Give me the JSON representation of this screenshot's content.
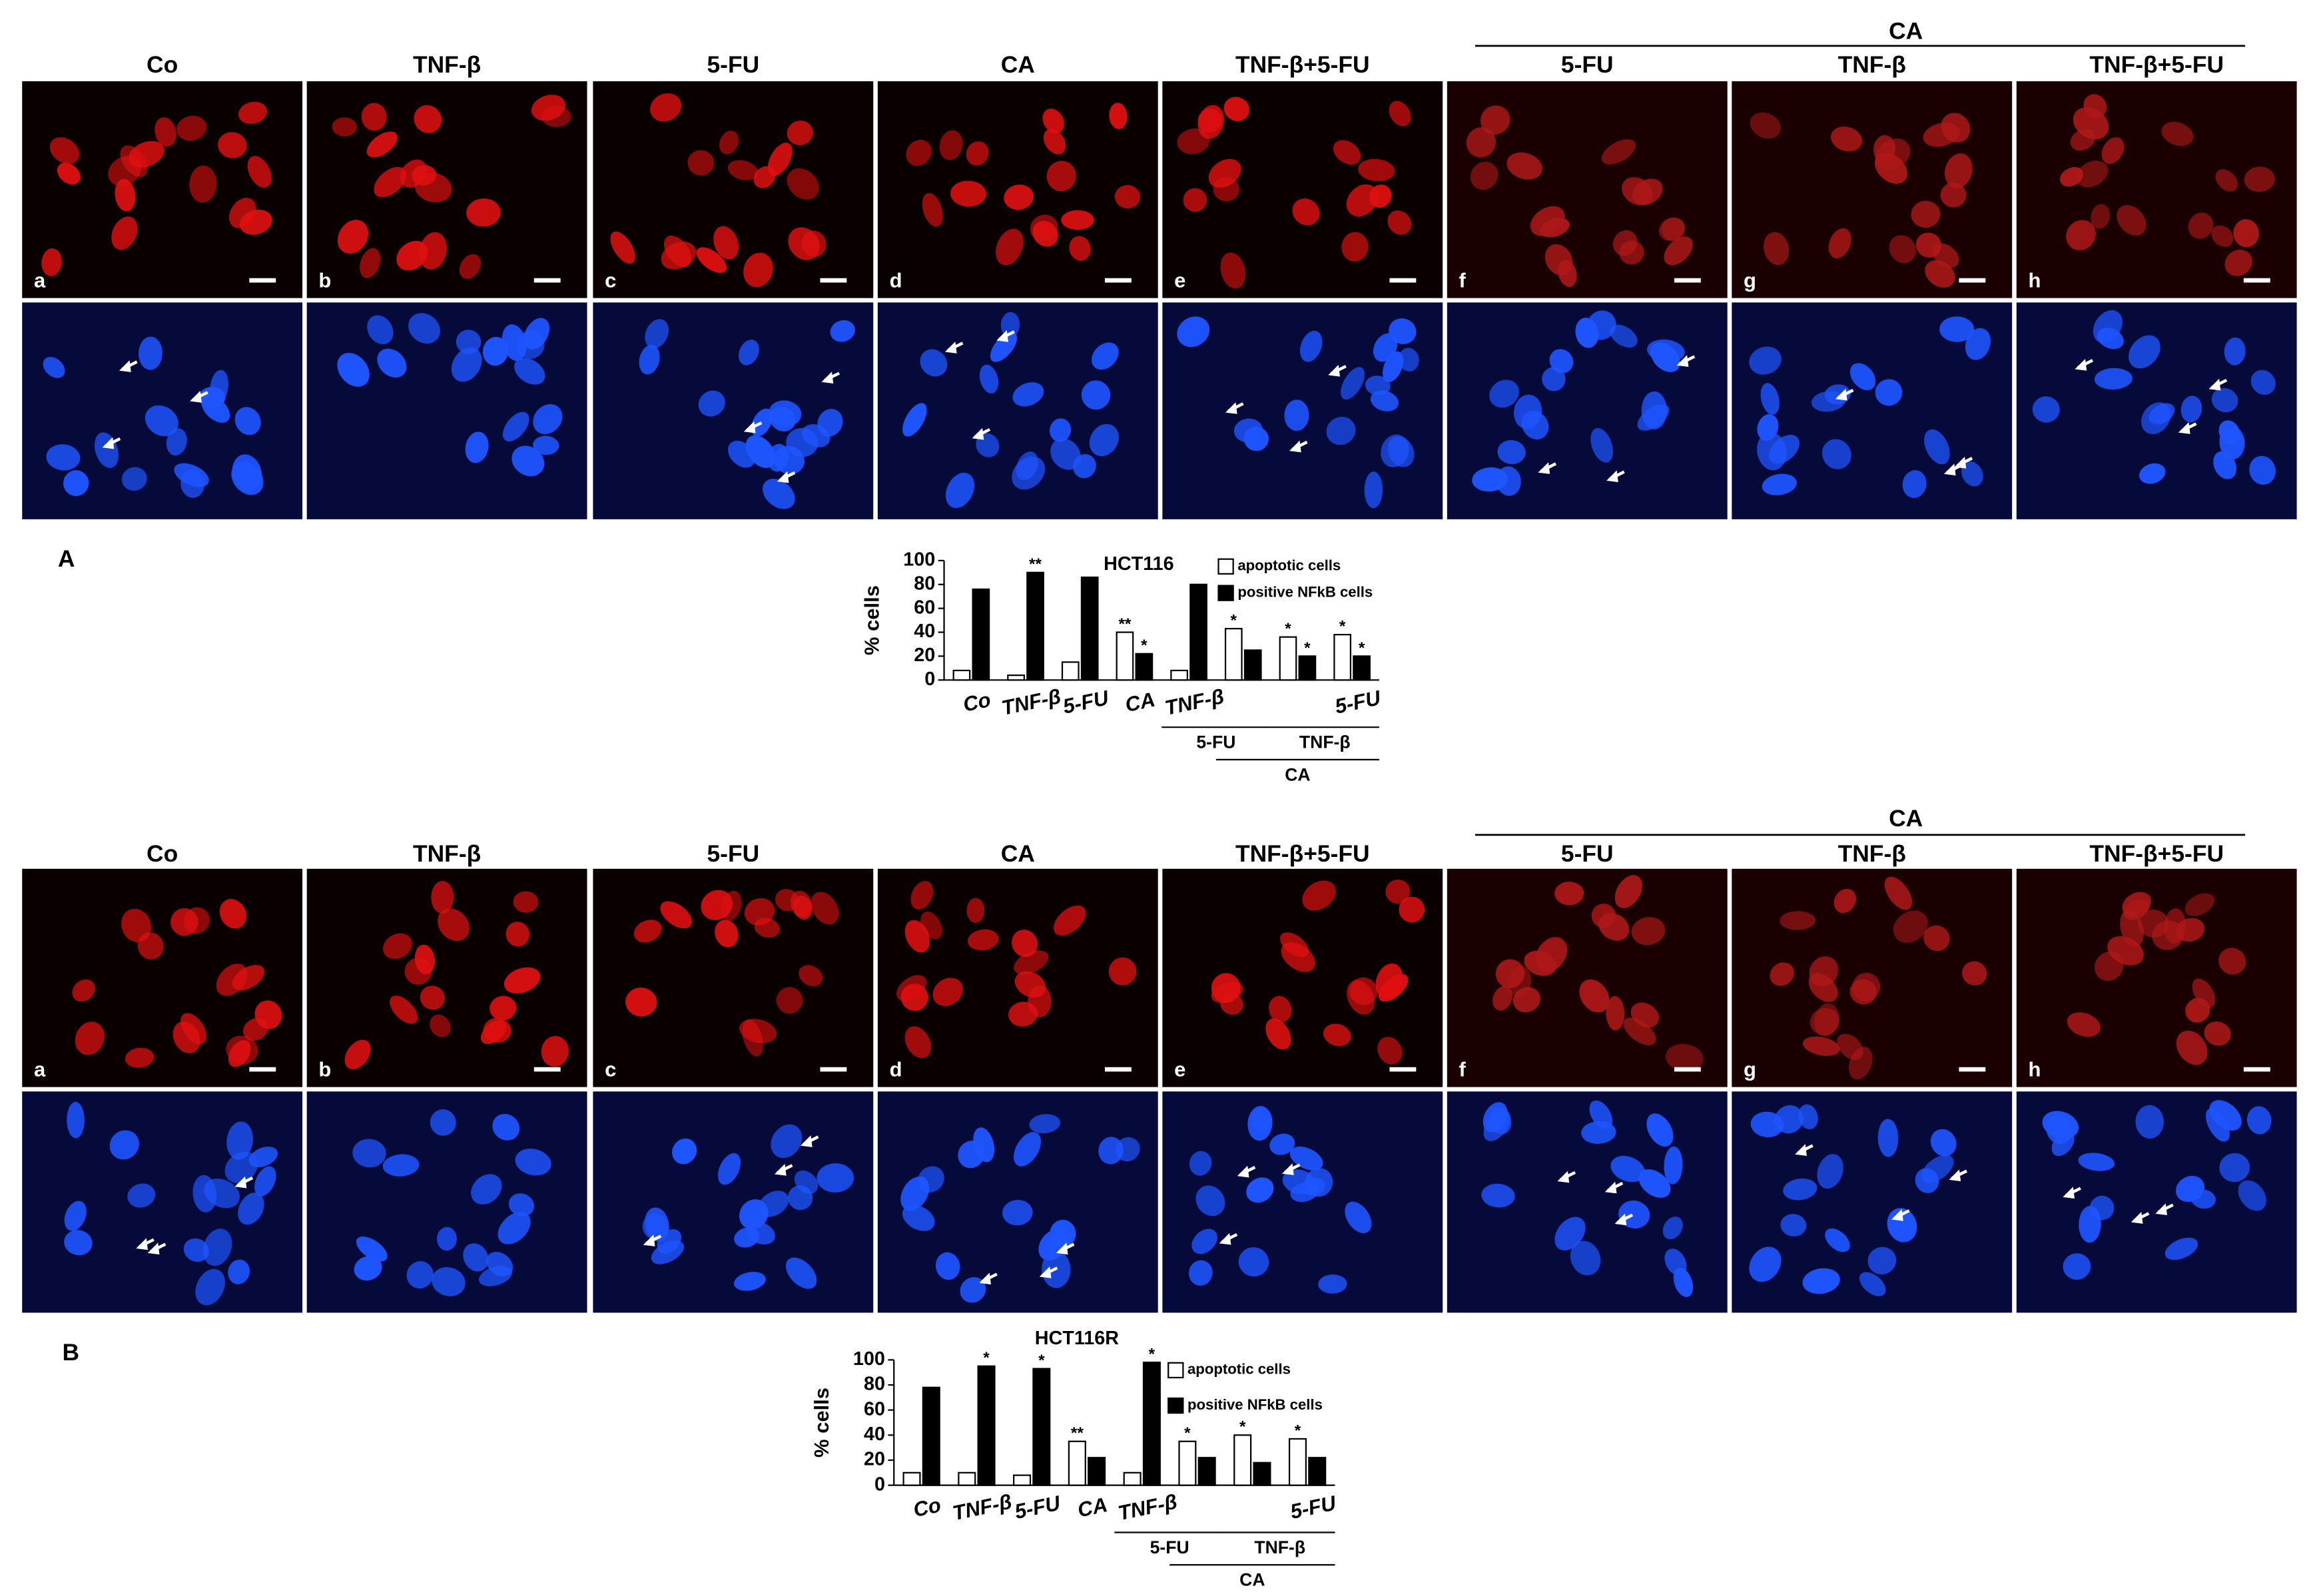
{
  "figure": {
    "sections": [
      {
        "label": "A",
        "group_label": "CA",
        "columns": [
          "Co",
          "TNF-β",
          "5-FU",
          "CA",
          "TNF-β+5-FU",
          "5-FU",
          "TNF-β",
          "TNF-β+5-FU"
        ],
        "panel_letters": [
          "a",
          "b",
          "c",
          "d",
          "e",
          "f",
          "g",
          "h"
        ]
      },
      {
        "label": "B",
        "group_label": "CA",
        "columns": [
          "Co",
          "TNF-β",
          "5-FU",
          "CA",
          "TNF-β+5-FU",
          "5-FU",
          "TNF-β",
          "TNF-β+5-FU"
        ],
        "panel_letters": [
          "a",
          "b",
          "c",
          "d",
          "e",
          "f",
          "g",
          "h"
        ]
      }
    ]
  },
  "chart_data": [
    {
      "type": "bar",
      "title": "HCT116",
      "y_label": "% cells",
      "categories": [
        "Co",
        "TNF-β",
        "5-FU",
        "CA",
        "TNF-β",
        null,
        null,
        "5-FU"
      ],
      "group_labels": [
        "5-FU",
        "TNF-β",
        "CA"
      ],
      "series": [
        {
          "name": "apoptotic cells",
          "color": "#ffffff",
          "values": [
            8,
            4,
            15,
            40,
            8,
            43,
            36,
            38
          ],
          "significance": [
            null,
            null,
            null,
            "**",
            null,
            "*",
            "*",
            "*"
          ]
        },
        {
          "name": "positive NFkB cells",
          "color": "#000000",
          "values": [
            76,
            90,
            86,
            22,
            80,
            25,
            20,
            20
          ],
          "significance": [
            null,
            "**",
            null,
            "*",
            null,
            null,
            "*",
            "*"
          ]
        }
      ],
      "ylim": [
        0,
        100
      ],
      "yticks": [
        0,
        20,
        40,
        60,
        80,
        100
      ]
    },
    {
      "type": "bar",
      "title": "HCT116R",
      "y_label": "% cells",
      "categories": [
        "Co",
        "TNF-β",
        "5-FU",
        "CA",
        "TNF-β",
        null,
        null,
        "5-FU"
      ],
      "group_labels": [
        "5-FU",
        "TNF-β",
        "CA"
      ],
      "series": [
        {
          "name": "apoptotic cells",
          "color": "#ffffff",
          "values": [
            10,
            10,
            8,
            35,
            10,
            35,
            40,
            37
          ],
          "significance": [
            null,
            null,
            null,
            "**",
            null,
            "*",
            "*",
            "*"
          ]
        },
        {
          "name": "positive NFkB cells",
          "color": "#000000",
          "values": [
            78,
            95,
            93,
            22,
            98,
            22,
            18,
            22
          ],
          "significance": [
            null,
            "*",
            "*",
            null,
            "*",
            null,
            null,
            null
          ]
        }
      ],
      "ylim": [
        0,
        100
      ],
      "yticks": [
        0,
        20,
        40,
        60,
        80,
        100
      ]
    }
  ]
}
